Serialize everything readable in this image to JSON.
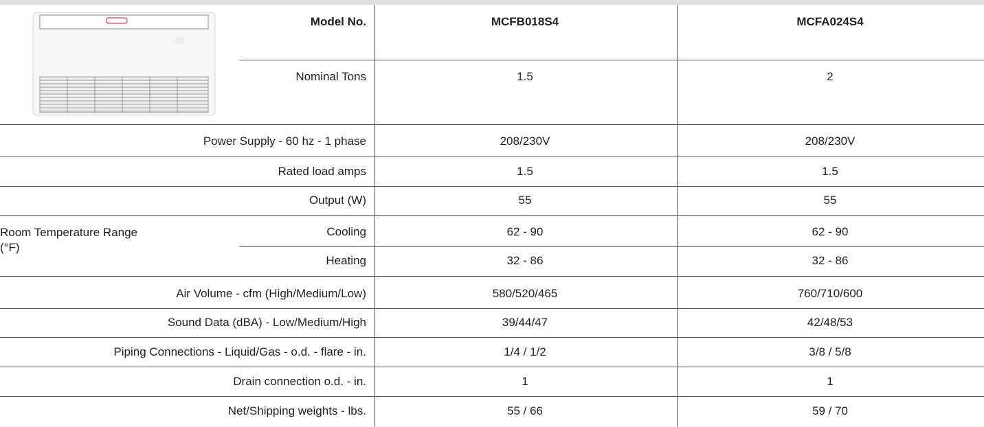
{
  "table": {
    "header": {
      "label": "Model No.",
      "columns": [
        "MCFB018S4",
        "MCFA024S4"
      ]
    },
    "rows": [
      {
        "label": "Nominal Tons",
        "values": [
          "1.5",
          "2"
        ]
      },
      {
        "label": "Power Supply - 60 hz - 1 phase",
        "values": [
          "208/230V",
          "208/230V"
        ]
      },
      {
        "label": "Rated load amps",
        "values": [
          "1.5",
          "1.5"
        ]
      },
      {
        "label": "Output (W)",
        "values": [
          "55",
          "55"
        ]
      },
      {
        "group": "Room Temperature Range (°F)",
        "label": "Cooling",
        "values": [
          "62 - 90",
          "62 - 90"
        ]
      },
      {
        "label": "Heating",
        "values": [
          "32 - 86",
          "32 - 86"
        ]
      },
      {
        "label": "Air Volume - cfm (High/Medium/Low)",
        "values": [
          "580/520/465",
          "760/710/600"
        ]
      },
      {
        "label": "Sound Data (dBA) - Low/Medium/High",
        "values": [
          "39/44/47",
          "42/48/53"
        ]
      },
      {
        "label": "Piping Connections - Liquid/Gas - o.d. - flare - in.",
        "values": [
          "1/4 / 1/2",
          "3/8 / 5/8"
        ]
      },
      {
        "label": "Drain connection o.d. - in.",
        "values": [
          "1",
          "1"
        ]
      },
      {
        "label": "Net/Shipping weights - lbs.",
        "values": [
          "55 / 66",
          "59 / 70"
        ]
      }
    ]
  }
}
